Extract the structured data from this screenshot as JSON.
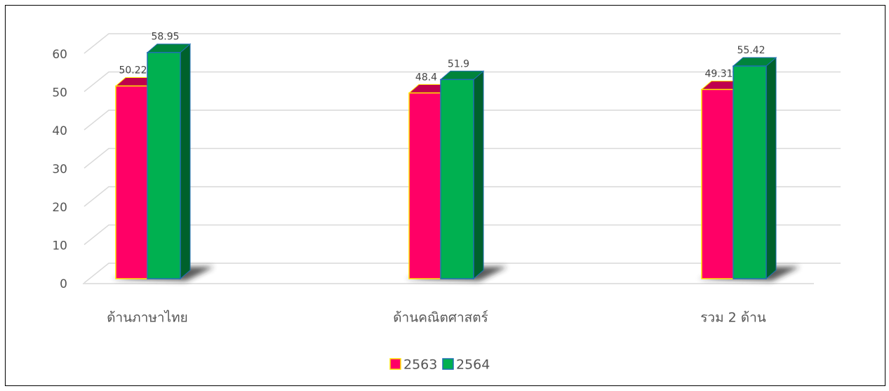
{
  "chart_data": {
    "type": "bar3d",
    "categories": [
      "ด้านภาษาไทย",
      "ด้านคณิตศาสตร์",
      "รวม 2 ด้าน"
    ],
    "series": [
      {
        "name": "2563",
        "color": "#ff0066",
        "edgecolor": "#ffe600",
        "values": [
          50.22,
          48.4,
          49.31
        ]
      },
      {
        "name": "2564",
        "color": "#00b050",
        "edgecolor": "#1f6fb4",
        "values": [
          58.95,
          51.9,
          55.42
        ]
      }
    ],
    "ylim": [
      0,
      60
    ],
    "yticks": [
      0,
      10,
      20,
      30,
      40,
      50,
      60
    ],
    "grid": true,
    "legend": "bottom"
  }
}
